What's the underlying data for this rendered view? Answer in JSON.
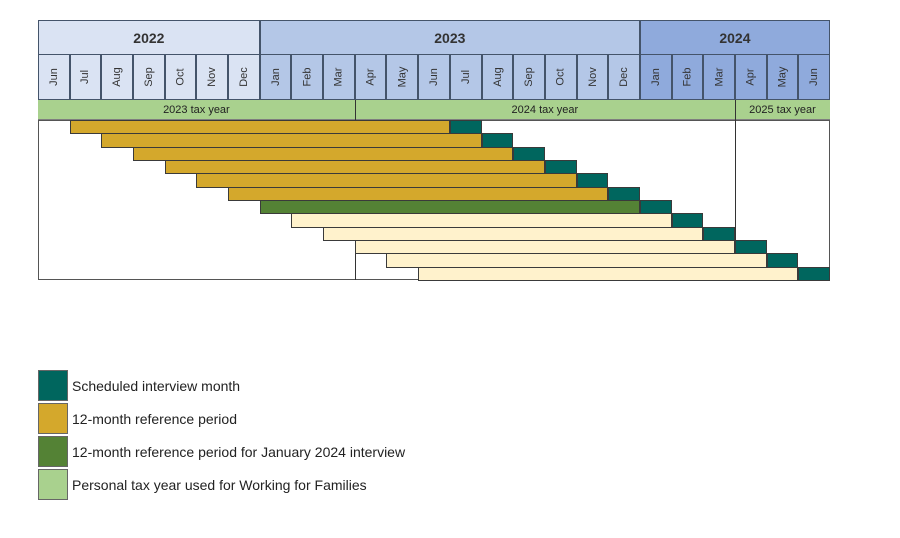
{
  "months": [
    "Jun",
    "Jul",
    "Aug",
    "Sep",
    "Oct",
    "Nov",
    "Dec",
    "Jan",
    "Feb",
    "Mar",
    "Apr",
    "May",
    "Jun",
    "Jul",
    "Aug",
    "Sep",
    "Oct",
    "Nov",
    "Dec",
    "Jan",
    "Feb",
    "Mar",
    "Apr",
    "May",
    "Jun"
  ],
  "years": [
    {
      "label": "2022",
      "start": 0,
      "span": 7,
      "color": "#dae3f3"
    },
    {
      "label": "2023",
      "start": 7,
      "span": 12,
      "color": "#b4c7e7"
    },
    {
      "label": "2024",
      "start": 19,
      "span": 6,
      "color": "#8faadc"
    }
  ],
  "tax_years": [
    {
      "label": "2023 tax year",
      "start": 0,
      "span": 10
    },
    {
      "label": "2024 tax year",
      "start": 10,
      "span": 12
    },
    {
      "label": "2025 tax year",
      "start": 22,
      "span": 3
    }
  ],
  "rows": [
    {
      "ref_start": "Jul 2022",
      "interview": "Jul 2023",
      "type": "reference"
    },
    {
      "ref_start": "Aug 2022",
      "interview": "Aug 2023",
      "type": "reference"
    },
    {
      "ref_start": "Sep 2022",
      "interview": "Sep 2023",
      "type": "reference"
    },
    {
      "ref_start": "Oct 2022",
      "interview": "Oct 2023",
      "type": "reference"
    },
    {
      "ref_start": "Nov 2022",
      "interview": "Nov 2023",
      "type": "reference"
    },
    {
      "ref_start": "Dec 2022",
      "interview": "Dec 2023",
      "type": "reference"
    },
    {
      "ref_start": "Jan 2023",
      "interview": "Jan 2024",
      "type": "january"
    },
    {
      "ref_start": "Feb 2023",
      "interview": "Feb 2024",
      "type": "future"
    },
    {
      "ref_start": "Mar 2023",
      "interview": "Mar 2024",
      "type": "future"
    },
    {
      "ref_start": "Apr 2023",
      "interview": "Apr 2024",
      "type": "future"
    },
    {
      "ref_start": "May 2023",
      "interview": "May 2024",
      "type": "future"
    },
    {
      "ref_start": "Jun 2023",
      "interview": "Jun 2024",
      "type": "future"
    }
  ],
  "colors": {
    "interview": "#00665e",
    "reference": "#d4a82c",
    "january": "#548235",
    "future": "#fff2cc",
    "tax_year": "#a9d18e"
  },
  "legend": [
    {
      "label": "Scheduled interview month",
      "color": "#00665e"
    },
    {
      "label": "12-month reference period",
      "color": "#d4a82c"
    },
    {
      "label": "12-month reference period for January 2024 interview",
      "color": "#548235"
    },
    {
      "label": "Personal tax year used for Working for Families",
      "color": "#a9d18e"
    }
  ]
}
